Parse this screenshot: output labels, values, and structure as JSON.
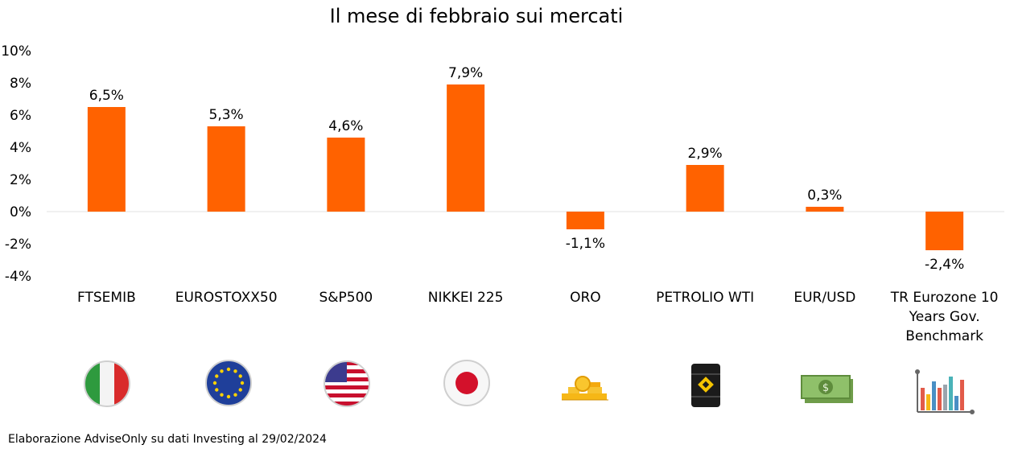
{
  "colors": {
    "bar": "#FF6200",
    "zero_line": "#e0e0e0",
    "text": "#000000"
  },
  "chart_data": {
    "type": "bar",
    "title": "Il mese di febbraio sui mercati",
    "categories": [
      [
        "FTSEMIB"
      ],
      [
        "EUROSTOXX50"
      ],
      [
        "S&P500"
      ],
      [
        "NIKKEI 225"
      ],
      [
        "ORO"
      ],
      [
        "PETROLIO WTI"
      ],
      [
        "EUR/USD"
      ],
      [
        "TR Eurozone 10",
        "Years Gov.",
        "Benchmark"
      ]
    ],
    "values": [
      6.5,
      5.3,
      4.6,
      7.9,
      -1.1,
      2.9,
      0.3,
      -2.4
    ],
    "data_labels": [
      "6,5%",
      "5,3%",
      "4,6%",
      "7,9%",
      "-1,1%",
      "2,9%",
      "0,3%",
      "-2,4%"
    ],
    "ylim": [
      -4,
      10
    ],
    "yticks": [
      10,
      8,
      6,
      4,
      2,
      0,
      -2,
      -4
    ],
    "ytick_labels": [
      "10%",
      "8%",
      "6%",
      "4%",
      "2%",
      "0%",
      "-2%",
      "-4%"
    ],
    "icons": [
      "italy-flag-icon",
      "eu-flag-icon",
      "usa-flag-icon",
      "japan-flag-icon",
      "gold-coins-icon",
      "oil-barrel-icon",
      "dollar-banknote-icon",
      "bar-chart-icon"
    ],
    "xlabel": "",
    "ylabel": ""
  },
  "footer": {
    "source": "Elaborazione AdviseOnly su dati Investing al 29/02/2024"
  }
}
